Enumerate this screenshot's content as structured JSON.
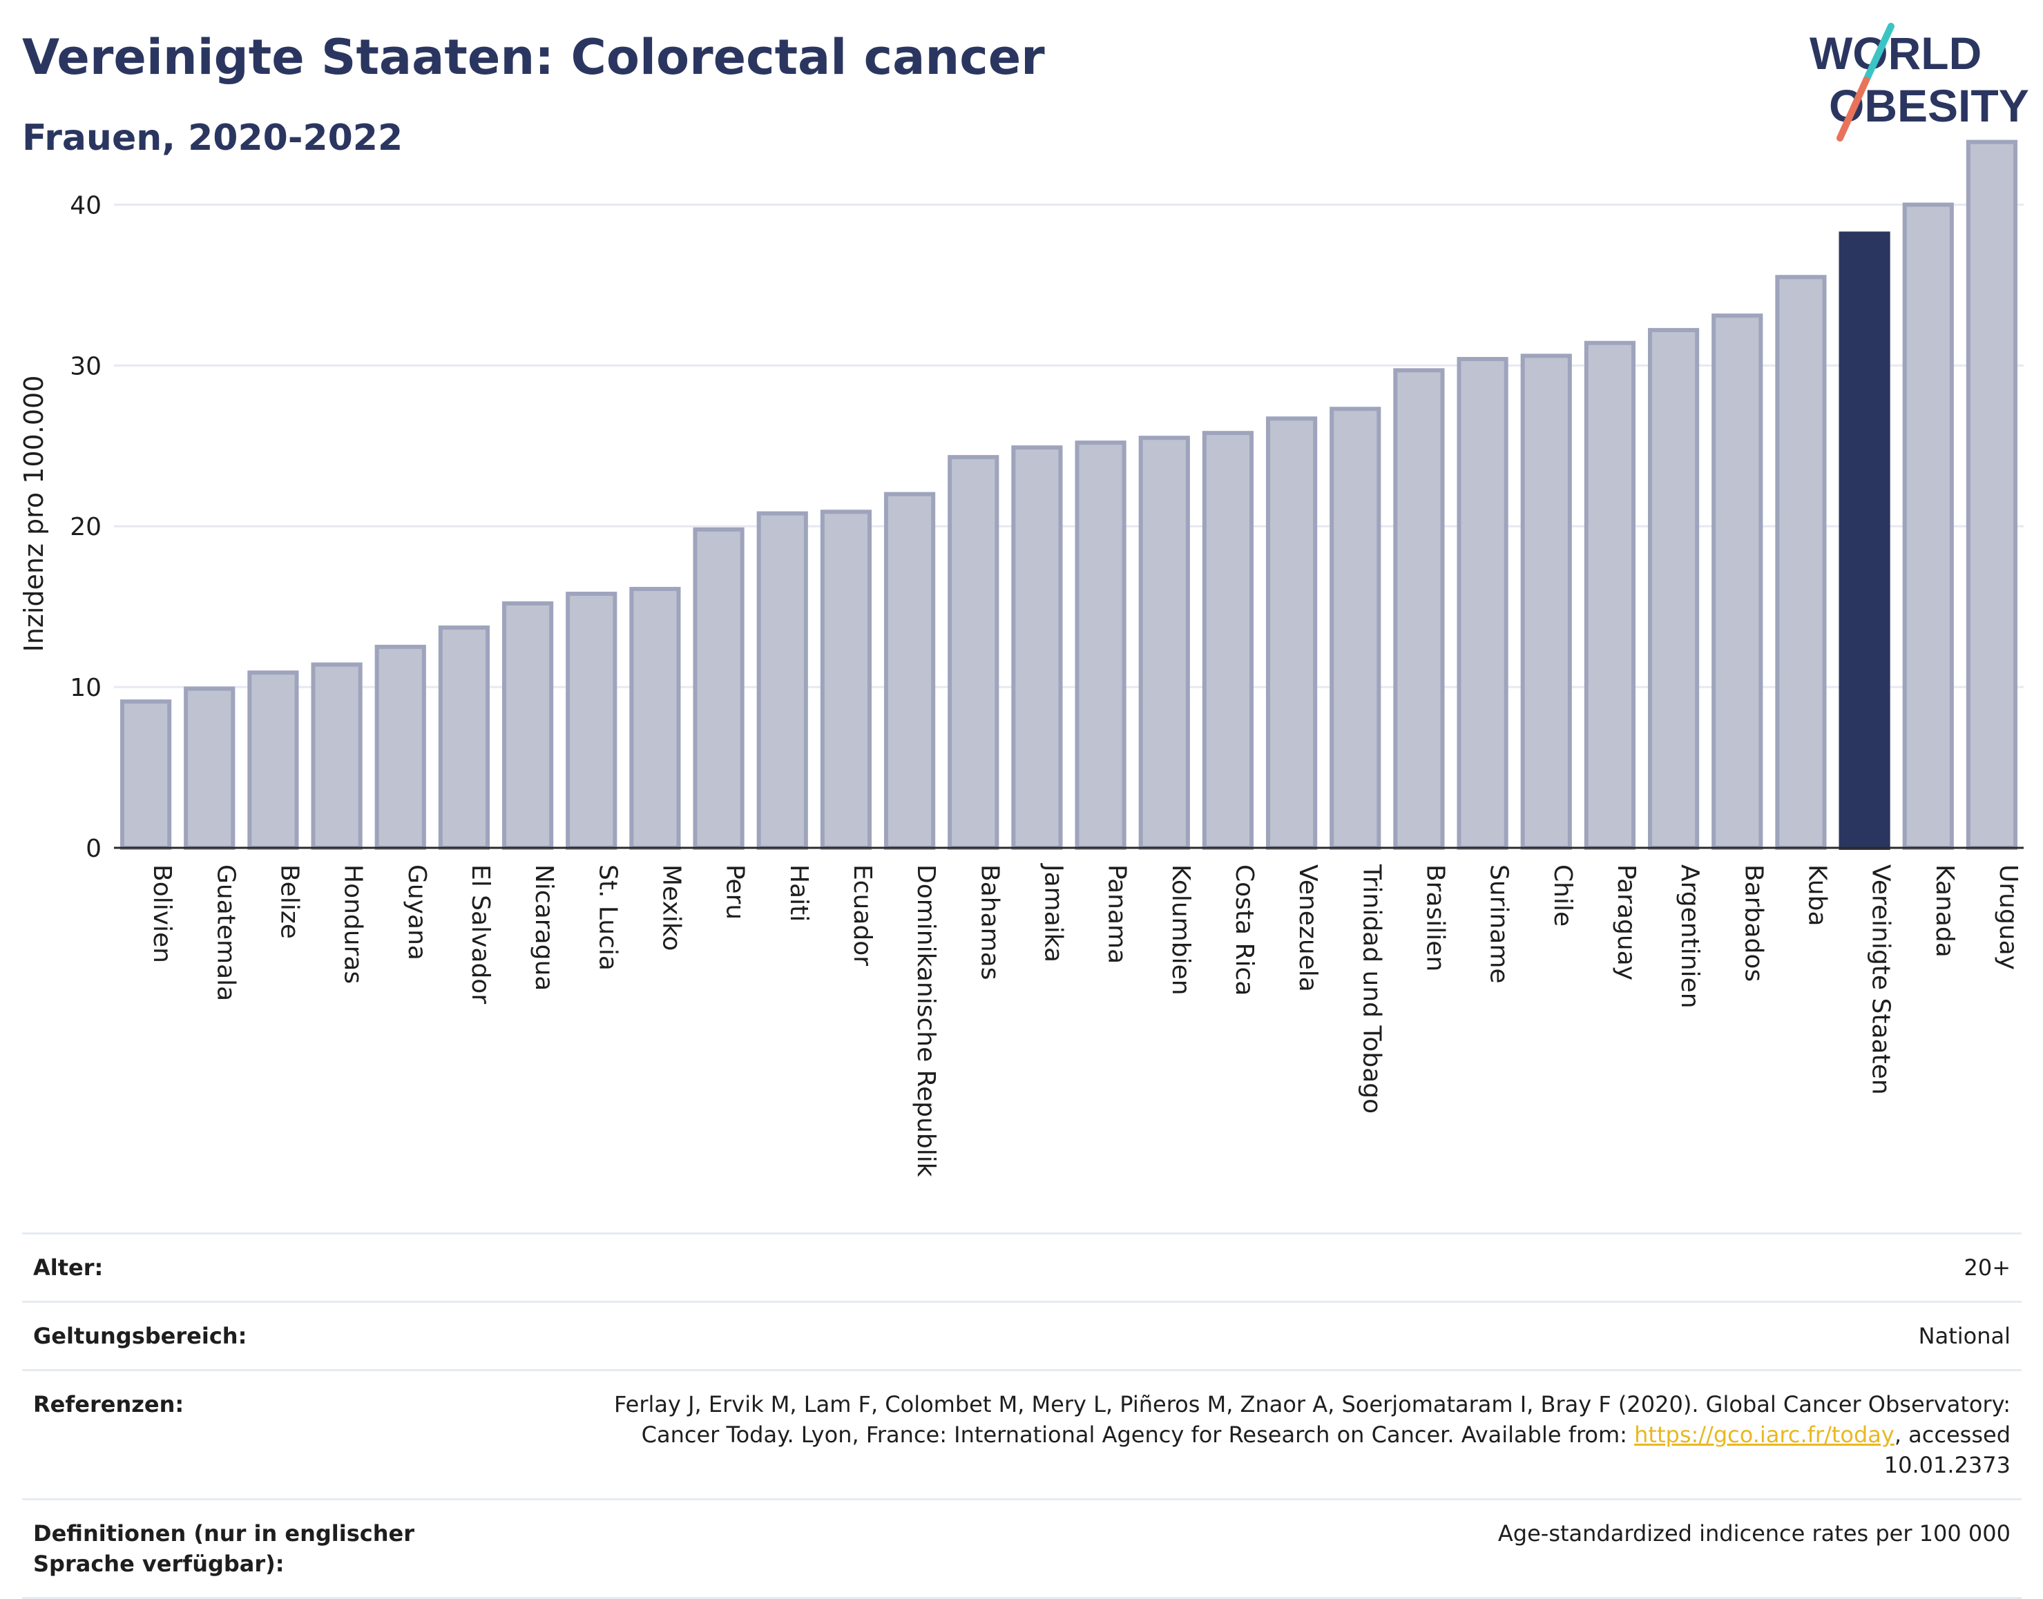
{
  "header": {
    "title": "Vereinigte Staaten: Colorectal cancer",
    "subtitle": "Frauen, 2020-2022"
  },
  "logo": {
    "line1": "WORLD",
    "line2": "OBESITY",
    "accent_colors": [
      "#3cc4c4",
      "#e8735a"
    ]
  },
  "chart_data": {
    "type": "bar",
    "title": "Vereinigte Staaten: Colorectal cancer",
    "subtitle": "Frauen, 2020-2022",
    "ylabel": "Inzidenz pro 100.000",
    "xlabel": "",
    "ylim": [
      0,
      45
    ],
    "yticks": [
      0,
      10,
      20,
      30,
      40
    ],
    "grid": true,
    "highlight": "Vereinigte Staaten",
    "colors": {
      "bar": "#bfc2d0",
      "bar_edge": "#9fa4bd",
      "highlight": "#2b3660"
    },
    "categories": [
      "Bolivien",
      "Guatemala",
      "Belize",
      "Honduras",
      "Guyana",
      "El Salvador",
      "Nicaragua",
      "St. Lucia",
      "Mexiko",
      "Peru",
      "Haiti",
      "Ecuador",
      "Dominikanische Republik",
      "Bahamas",
      "Jamaika",
      "Panama",
      "Kolumbien",
      "Costa Rica",
      "Venezuela",
      "Trinidad und Tobago",
      "Brasilien",
      "Suriname",
      "Chile",
      "Paraguay",
      "Argentinien",
      "Barbados",
      "Kuba",
      "Vereinigte Staaten",
      "Kanada",
      "Uruguay"
    ],
    "values": [
      9.1,
      9.9,
      10.9,
      11.4,
      12.5,
      13.7,
      15.2,
      15.8,
      16.1,
      19.8,
      20.8,
      20.9,
      22.0,
      24.3,
      24.9,
      25.2,
      25.5,
      25.8,
      26.7,
      27.3,
      29.7,
      30.4,
      30.6,
      31.4,
      32.2,
      33.1,
      35.5,
      38.2,
      40.0,
      43.9
    ]
  },
  "info": [
    {
      "key": "Alter:",
      "value": "20+"
    },
    {
      "key": "Geltungsbereich:",
      "value": "National"
    },
    {
      "key": "Referenzen:",
      "value_pre": "Ferlay J, Ervik M, Lam F, Colombet M, Mery L, Piñeros M, Znaor A, Soerjomataram I, Bray F (2020). Global Cancer Observatory: Cancer Today. Lyon, France: International Agency for Research on Cancer. Available from: ",
      "link": "https://gco.iarc.fr/today",
      "value_post": ", accessed 10.01.2373"
    },
    {
      "key": "Definitionen (nur in englischer Sprache verfügbar):",
      "value": "Age-standardized indicence rates per 100 000"
    }
  ]
}
